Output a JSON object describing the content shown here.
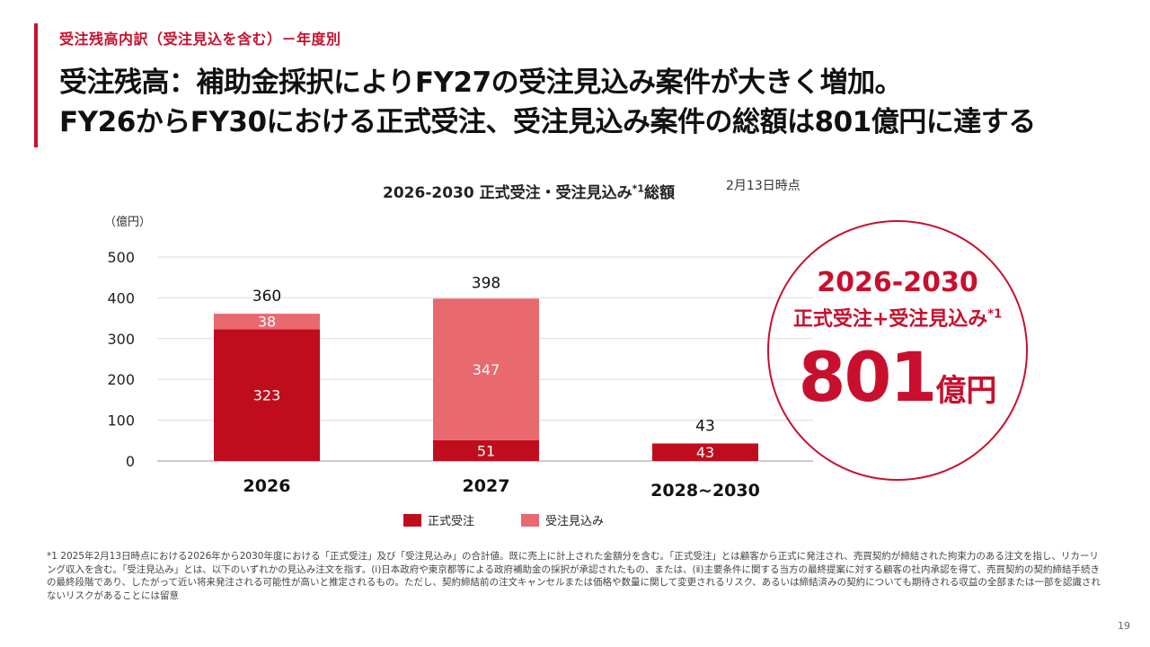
{
  "section_label": "受注残高内訳（受注見込を含む）－年度別",
  "headline": {
    "line1": "受注残高：補助金採択によりFY27の受注見込み案件が大きく増加。",
    "line2": "FY26からFY30における正式受注、受注見込み案件の総額は801億円に達する"
  },
  "chart_header": {
    "title": "2026-2030 正式受注・受注見込み",
    "title_sup": "*1",
    "title_suffix": "総額",
    "as_of": "2月13日時点",
    "unit": "（億円）"
  },
  "colors": {
    "formal": "#c00d1e",
    "prospect": "#e8696e",
    "accent": "#c8102e"
  },
  "chart_data": {
    "type": "bar",
    "stacked": true,
    "categories": [
      "2026",
      "2027",
      "2028~2030"
    ],
    "series": [
      {
        "name": "正式受注",
        "values": [
          323,
          51,
          43
        ]
      },
      {
        "name": "受注見込み",
        "values": [
          38,
          347,
          null
        ]
      }
    ],
    "totals": [
      "360",
      "398",
      "43"
    ],
    "segment_labels": {
      "formal": [
        "323",
        "51",
        "43"
      ],
      "prospect": [
        "38",
        "347",
        ""
      ]
    },
    "ylim": [
      0,
      500
    ],
    "yticks": [
      "0",
      "100",
      "200",
      "300",
      "400",
      "500"
    ],
    "grid": true,
    "legend_position": "bottom"
  },
  "callout": {
    "range": "2026-2030",
    "desc": "正式受注+受注見込み",
    "desc_sup": "*1",
    "total_value": "801",
    "total_unit": "億円"
  },
  "footnote": "*1 2025年2月13日時点における2026年から2030年度における「正式受注」及び「受注見込み」の合計値。既に売上に計上された金額分を含む。「正式受注」とは顧客から正式に発注され、売買契約が締結された拘束力のある注文を指し、リカーリング収入を含む。「受注見込み」とは、以下のいずれかの見込み注文を指す。(ⅰ)日本政府や東京都等による政府補助金の採択が承認されたもの、または、(ⅱ)主要条件に関する当方の最終提案に対する顧客の社内承認を得て、売買契約の契約締結手続きの最終段階であり、したがって近い将来発注される可能性が高いと推定されるもの。ただし、契約締結前の注文キャンセルまたは価格や数量に関して変更されるリスク、あるいは締結済みの契約についても期待される収益の全部または一部を認識されないリスクがあることには留意",
  "page_number": "19"
}
